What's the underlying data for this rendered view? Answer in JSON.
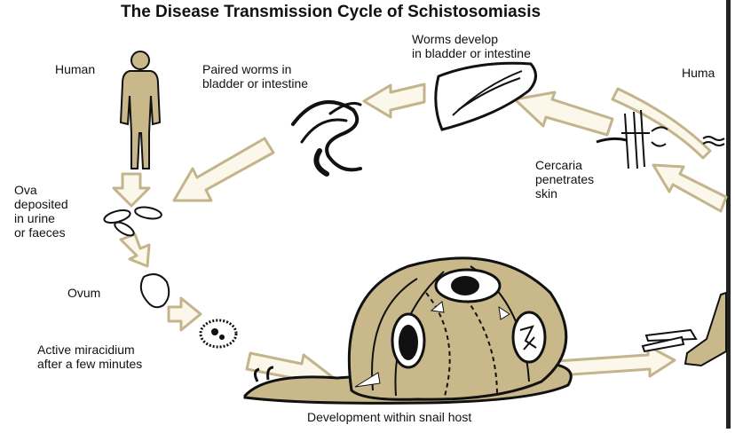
{
  "title": "The Disease Transmission Cycle of Schistosomiasis",
  "labels": {
    "human_left": "Human",
    "human_right": "Huma",
    "paired_worms": "Paired worms in\nbladder or intestine",
    "worms_develop": "Worms develop\nin bladder or intestine",
    "cercaria": "Cercaria\npenetrates\nskin",
    "ova": "Ova\ndeposited\nin urine\nor faeces",
    "ovum": "Ovum",
    "miracidium": "Active miracidium\nafter a few minutes",
    "snail_host": "Development within snail host"
  },
  "colors": {
    "tan": "#c9b98a",
    "arrow_fill": "#fbf7ea",
    "arrow_stroke": "#c4b48c",
    "ink": "#111111",
    "border": "#222222"
  }
}
